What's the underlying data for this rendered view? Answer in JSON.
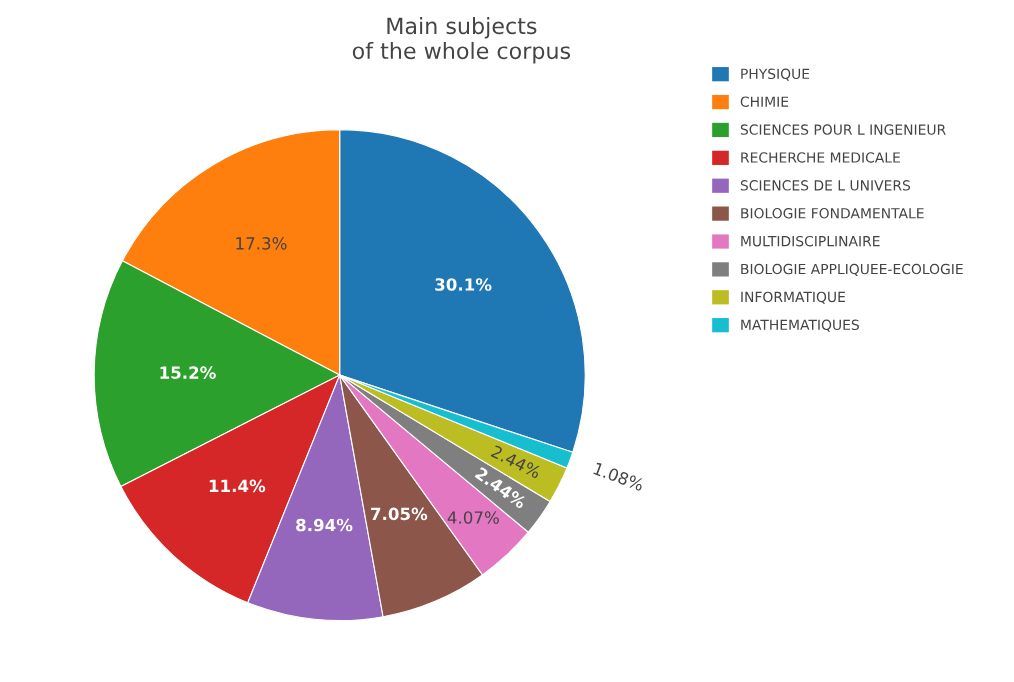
{
  "chart_data": {
    "type": "pie",
    "title": "Main subjects\nof the whole corpus",
    "categories": [
      "PHYSIQUE",
      "CHIMIE",
      "SCIENCES POUR L INGENIEUR",
      "RECHERCHE MEDICALE",
      "SCIENCES DE L UNIVERS",
      "BIOLOGIE FONDAMENTALE",
      "MULTIDISCIPLINAIRE",
      "BIOLOGIE APPLIQUEE-ECOLOGIE",
      "INFORMATIQUE",
      "MATHEMATIQUES"
    ],
    "values": [
      30.1,
      17.3,
      15.2,
      11.4,
      8.94,
      7.05,
      4.07,
      2.44,
      2.44,
      1.08
    ],
    "value_labels": [
      "30.1%",
      "17.3%",
      "15.2%",
      "11.4%",
      "8.94%",
      "7.05%",
      "4.07%",
      "2.44%",
      "2.44%",
      "1.08%"
    ],
    "colors": [
      "#1f77b4",
      "#ff7f0e",
      "#2ca02c",
      "#d62728",
      "#9467bd",
      "#8c564b",
      "#e377c2",
      "#7f7f7f",
      "#bcbd22",
      "#17becf"
    ],
    "legend": "top right"
  }
}
